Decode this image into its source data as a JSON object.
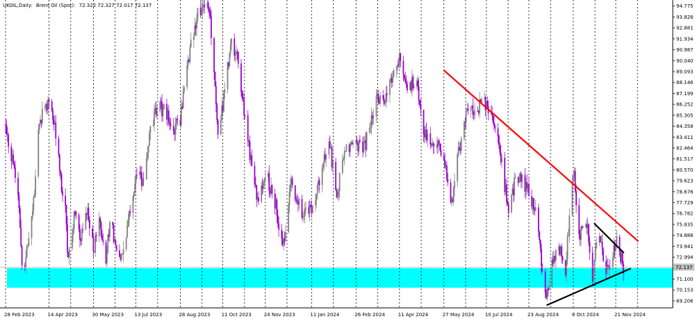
{
  "header": {
    "symbol": "UKOIL,Daily:",
    "description": "Brent Oil (Spot):",
    "ohlc": "72.322 72.327 72.017 72.137"
  },
  "chart_data": {
    "type": "candlestick",
    "symbol": "UKOIL",
    "timeframe": "Daily",
    "title": "UKOIL,Daily: Brent Oil (Spot): 72.322 72.327 72.017 72.137",
    "last_ohlc": {
      "open": 72.322,
      "high": 72.327,
      "low": 72.017,
      "close": 72.137
    },
    "xlabel": "",
    "ylabel": "",
    "ylim": [
      68.6,
      95.3
    ],
    "grid": {
      "vertical": true,
      "horizontal": false,
      "style": "dotted"
    },
    "y_ticks": [
      "94.775",
      "93.828",
      "92.881",
      "91.934",
      "90.987",
      "90.040",
      "89.093",
      "88.146",
      "87.199",
      "86.252",
      "85.305",
      "84.358",
      "83.411",
      "82.464",
      "81.517",
      "80.570",
      "79.623",
      "78.676",
      "77.729",
      "76.782",
      "75.835",
      "74.888",
      "73.941",
      "72.994",
      "72.047",
      "71.100",
      "70.153",
      "69.206"
    ],
    "x_ticks": [
      "28 Feb 2023",
      "14 Apr 2023",
      "30 May 2023",
      "13 Jul 2023",
      "28 Aug 2023",
      "11 Oct 2023",
      "24 Nov 2023",
      "11 Jan 2024",
      "26 Feb 2024",
      "11 Apr 2024",
      "27 May 2024",
      "10 Jul 2024",
      "23 Aug 2024",
      "8 Oct 2024",
      "21 Nov 2024"
    ],
    "current_price": 72.137,
    "current_price_label": "72.137",
    "price_path": [
      [
        "28 Feb 2023",
        84.5
      ],
      [
        "2023-03-06",
        82.0
      ],
      [
        "2023-03-10",
        80.5
      ],
      [
        "2023-03-14",
        77.0
      ],
      [
        "2023-03-17",
        72.5
      ],
      [
        "2023-03-20",
        72.2
      ],
      [
        "2023-03-24",
        74.5
      ],
      [
        "2023-03-28",
        77.5
      ],
      [
        "2023-03-31",
        79.8
      ],
      [
        "2023-04-04",
        84.8
      ],
      [
        "14 Apr 2023",
        86.5
      ],
      [
        "2023-04-20",
        84.5
      ],
      [
        "2023-04-26",
        80.0
      ],
      [
        "2023-05-01",
        77.0
      ],
      [
        "2023-05-04",
        72.5
      ],
      [
        "2023-05-10",
        76.5
      ],
      [
        "2023-05-17",
        75.0
      ],
      [
        "2023-05-24",
        77.0
      ],
      [
        "30 May 2023",
        73.5
      ],
      [
        "2023-06-05",
        76.5
      ],
      [
        "2023-06-12",
        72.0
      ],
      [
        "2023-06-16",
        76.5
      ],
      [
        "2023-06-22",
        74.0
      ],
      [
        "2023-06-28",
        73.0
      ],
      [
        "13 Jul 2023",
        80.0
      ],
      [
        "2023-07-20",
        79.5
      ],
      [
        "2023-07-28",
        84.0
      ],
      [
        "2023-08-04",
        86.0
      ],
      [
        "2023-08-14",
        85.5
      ],
      [
        "2023-08-21",
        84.0
      ],
      [
        "28 Aug 2023",
        85.0
      ],
      [
        "2023-09-05",
        90.0
      ],
      [
        "2023-09-15",
        94.0
      ],
      [
        "2023-09-27",
        95.0
      ],
      [
        "2023-10-06",
        84.0
      ],
      [
        "11 Oct 2023",
        86.0
      ],
      [
        "2023-10-20",
        92.0
      ],
      [
        "2023-10-27",
        90.0
      ],
      [
        "2023-11-03",
        85.0
      ],
      [
        "2023-11-16",
        77.5
      ],
      [
        "24 Nov 2023",
        80.5
      ],
      [
        "2023-12-05",
        77.5
      ],
      [
        "2023-12-12",
        73.5
      ],
      [
        "2023-12-20",
        79.5
      ],
      [
        "2024-01-02",
        76.5
      ],
      [
        "11 Jan 2024",
        77.5
      ],
      [
        "2024-01-22",
        80.5
      ],
      [
        "2024-01-29",
        83.0
      ],
      [
        "2024-02-06",
        78.5
      ],
      [
        "2024-02-14",
        82.0
      ],
      [
        "26 Feb 2024",
        82.5
      ],
      [
        "2024-03-06",
        82.5
      ],
      [
        "2024-03-18",
        86.5
      ],
      [
        "2024-03-28",
        87.0
      ],
      [
        "11 Apr 2024",
        90.5
      ],
      [
        "2024-04-19",
        87.5
      ],
      [
        "2024-04-29",
        88.5
      ],
      [
        "2024-05-06",
        83.5
      ],
      [
        "2024-05-16",
        83.0
      ],
      [
        "27 May 2024",
        82.0
      ],
      [
        "2024-06-04",
        77.5
      ],
      [
        "2024-06-12",
        82.5
      ],
      [
        "2024-06-20",
        85.5
      ],
      [
        "10 Jul 2024",
        86.5
      ],
      [
        "2024-07-18",
        85.0
      ],
      [
        "2024-07-26",
        81.0
      ],
      [
        "2024-08-02",
        76.8
      ],
      [
        "2024-08-08",
        79.5
      ],
      [
        "2024-08-14",
        80.0
      ],
      [
        "23 Aug 2024",
        78.5
      ],
      [
        "2024-08-30",
        77.0
      ],
      [
        "2024-09-06",
        71.5
      ],
      [
        "2024-09-10",
        69.3
      ],
      [
        "2024-09-16",
        72.5
      ],
      [
        "2024-09-24",
        73.5
      ],
      [
        "2024-09-30",
        72.0
      ],
      [
        "8 Oct 2024",
        80.8
      ],
      [
        "2024-10-14",
        75.0
      ],
      [
        "2024-10-22",
        76.0
      ],
      [
        "2024-10-28",
        71.5
      ],
      [
        "2024-11-04",
        75.5
      ],
      [
        "2024-11-11",
        71.5
      ],
      [
        "21 Nov 2024",
        74.5
      ],
      [
        "2024-11-29",
        72.1
      ]
    ],
    "support_zone": {
      "low": 70.35,
      "high": 72.05,
      "color": "#00ffff"
    },
    "trendlines": [
      {
        "name": "descending-resistance",
        "color": "#ff0000",
        "start": [
          "27 May 2024",
          89.2
        ],
        "end": [
          "2024-12-14",
          74.4
        ]
      },
      {
        "name": "triangle-upper",
        "color": "#000000",
        "start": [
          "2024-10-30",
          75.9
        ],
        "end": [
          "2024-11-29",
          73.4
        ]
      },
      {
        "name": "triangle-lower",
        "color": "#000000",
        "start": [
          "2024-09-11",
          68.85
        ],
        "end": [
          "2024-12-06",
          72.0
        ]
      }
    ],
    "colors": {
      "bull": "#808080",
      "bear": "#9900cc",
      "grid": "#000000",
      "background": "#ffffff",
      "axis_text": "#000000",
      "price_tag": "#c0c0c0"
    }
  }
}
